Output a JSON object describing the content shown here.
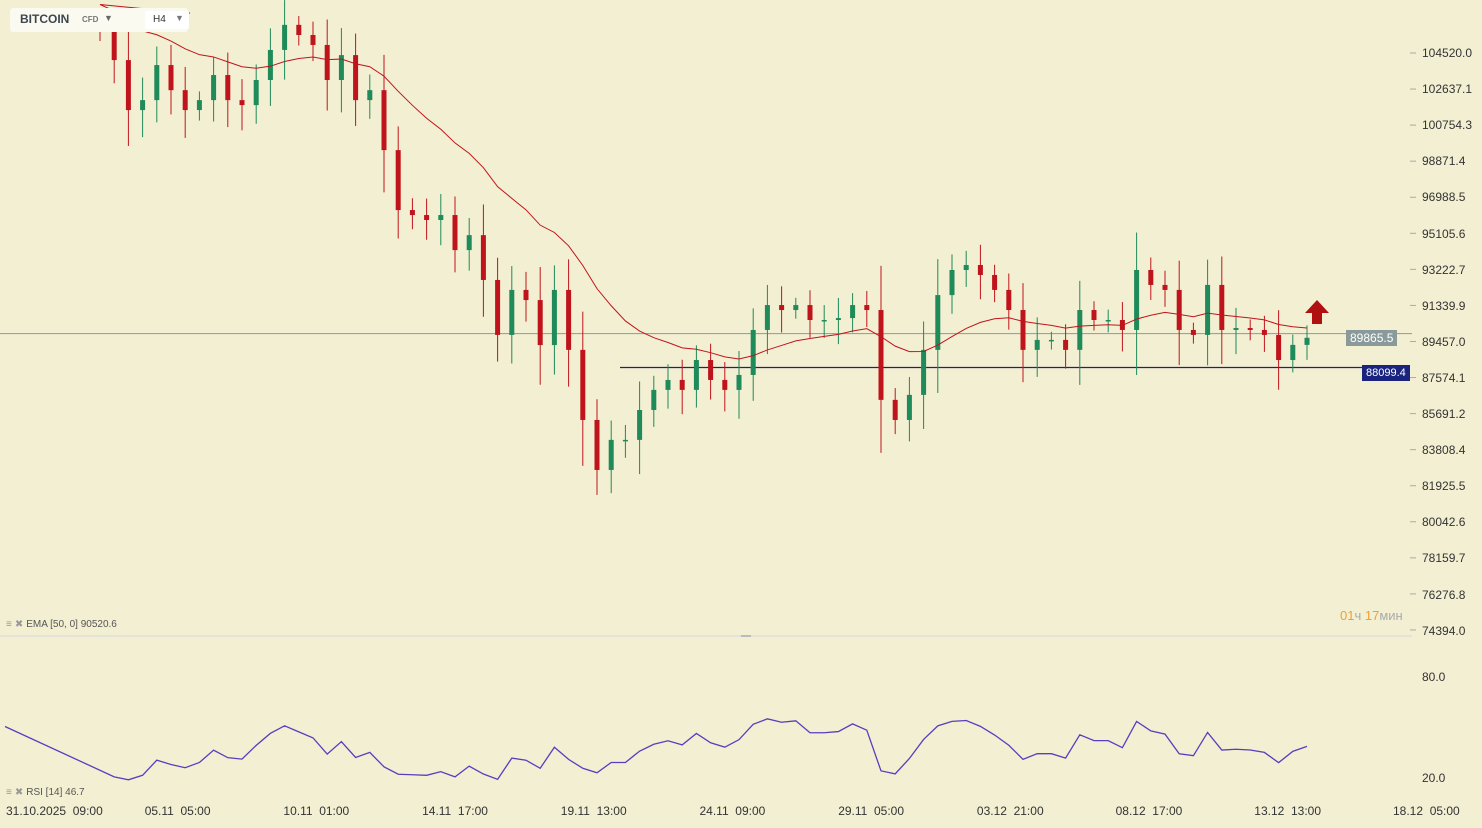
{
  "symbol": {
    "name": "BITCOIN",
    "type": "CFD",
    "timeframe": "H4"
  },
  "price_axis": [
    "104520.0",
    "102637.1",
    "100754.3",
    "98871.4",
    "96988.5",
    "95105.6",
    "93222.7",
    "91339.9",
    "89457.0",
    "87574.1",
    "85691.2",
    "83808.4",
    "81925.5",
    "80042.6",
    "78159.7",
    "76276.8",
    "74394.0"
  ],
  "current_price": "89865.5",
  "level_line": "88099.4",
  "timer": {
    "hours": "01",
    "h_unit": "ч",
    "minutes": "17",
    "m_unit": "мин"
  },
  "indicators": {
    "ema": "EMA [50, 0] 90520.6",
    "rsi": "RSI [14] 46.7"
  },
  "rsi_axis": [
    "80.0",
    "20.0"
  ],
  "time_axis": [
    "31.10.2025  09:00",
    "05.11  05:00",
    "10.11  01:00",
    "14.11  17:00",
    "19.11  13:00",
    "24.11  09:00",
    "29.11  05:00",
    "03.12  21:00",
    "08.12  17:00",
    "13.12  13:00",
    "18.12  05:00"
  ],
  "colors": {
    "up": "#1f8a5a",
    "down": "#c0141c",
    "ema": "#c0141c",
    "rsi": "#5a3cc0",
    "level": "#1a237e",
    "current": "#8a9a9a"
  },
  "chart_data": {
    "type": "candlestick",
    "ylim": [
      74394,
      104520
    ],
    "closes": [
      105720,
      104150,
      101540,
      102060,
      103890,
      102580,
      101540,
      102060,
      103370,
      102060,
      101800,
      103110,
      104680,
      105990,
      105460,
      104940,
      103110,
      104410,
      102060,
      102580,
      99450,
      96320,
      96060,
      95800,
      96060,
      94230,
      95010,
      92670,
      89800,
      92150,
      91620,
      89270,
      92150,
      89020,
      85360,
      82750,
      84320,
      84320,
      85880,
      86930,
      87450,
      86930,
      88490,
      87450,
      86930,
      87710,
      90060,
      91360,
      91100,
      91360,
      90580,
      90580,
      90680,
      91360,
      91100,
      86410,
      85360,
      86670,
      89020,
      91880,
      93190,
      93450,
      92930,
      92150,
      91100,
      89020,
      89540,
      89540,
      89020,
      91100,
      90580,
      90580,
      90060,
      93190,
      92410,
      92150,
      90060,
      89800,
      92410,
      90060,
      90160,
      90060,
      89800,
      88490,
      89280,
      89650
    ],
    "ema_period": 50,
    "rsi_period": 14,
    "rsi_ylim": [
      20,
      80
    ]
  }
}
